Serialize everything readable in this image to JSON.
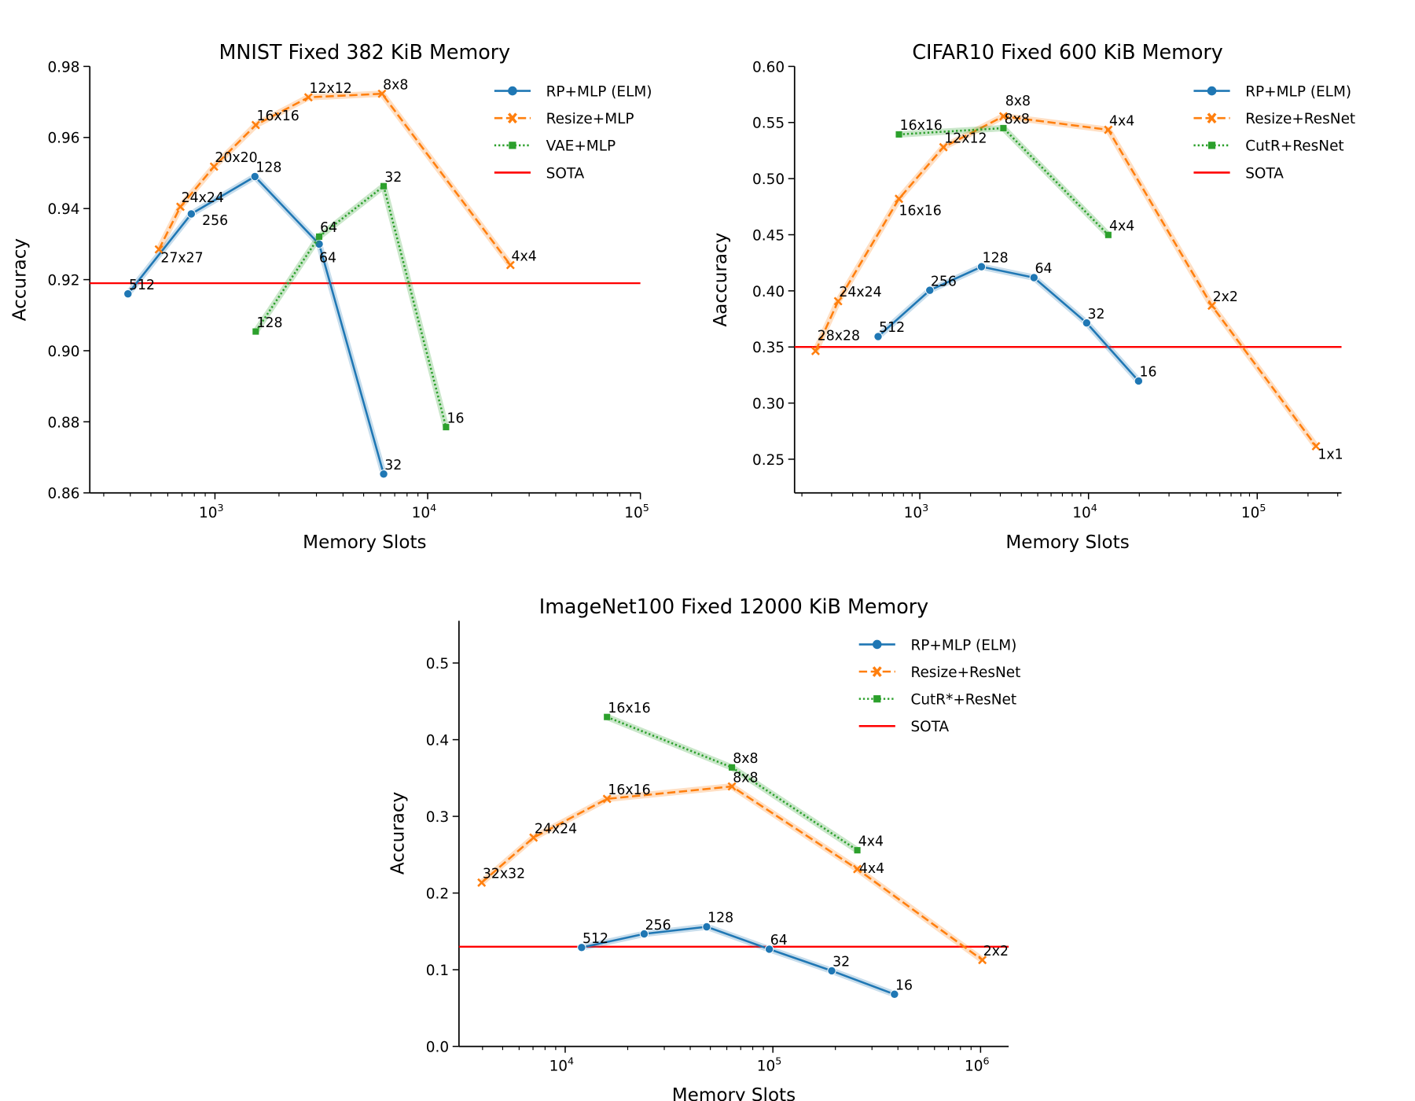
{
  "colors": {
    "rp": "#1f77b4",
    "resize": "#ff7f0e",
    "third": "#2ca02c",
    "sota": "#ff0000"
  },
  "chart_data": [
    {
      "type": "line",
      "title": "MNIST Fixed 382 KiB Memory",
      "xlabel": "Memory Slots",
      "ylabel": "Accuracy",
      "xscale": "log",
      "xlim": [
        258,
        100000
      ],
      "ylim": [
        0.86,
        0.98
      ],
      "yticks": [
        "0.86",
        "0.88",
        "0.90",
        "0.92",
        "0.94",
        "0.96",
        "0.98"
      ],
      "xticks": [
        {
          "base": "10",
          "exp": "3"
        },
        {
          "base": "10",
          "exp": "4"
        },
        {
          "base": "10",
          "exp": "5"
        }
      ],
      "legend_position": "top-right",
      "sota": 0.919,
      "series": [
        {
          "name": "RP+MLP (ELM)",
          "style": "solid-circle",
          "color": "#1f77b4",
          "points": [
            {
              "x": 390,
              "y": 0.916,
              "label": "512"
            },
            {
              "x": 774,
              "y": 0.9385,
              "label": "256"
            },
            {
              "x": 1541,
              "y": 0.949,
              "label": "128"
            },
            {
              "x": 3090,
              "y": 0.93,
              "label": "64"
            },
            {
              "x": 6210,
              "y": 0.8653,
              "label": "32"
            }
          ]
        },
        {
          "name": "Resize+MLP",
          "style": "dashed-x",
          "color": "#ff7f0e",
          "points": [
            {
              "x": 545,
              "y": 0.9285,
              "label": "27x27"
            },
            {
              "x": 688,
              "y": 0.9405,
              "label": "24x24"
            },
            {
              "x": 990,
              "y": 0.9518,
              "label": "20x20"
            },
            {
              "x": 1555,
              "y": 0.9635,
              "label": "16x16"
            },
            {
              "x": 2750,
              "y": 0.9713,
              "label": "12x12"
            },
            {
              "x": 6100,
              "y": 0.9723,
              "label": "8x8"
            },
            {
              "x": 24500,
              "y": 0.9241,
              "label": "4x4"
            }
          ]
        },
        {
          "name": "VAE+MLP",
          "style": "dotted-square",
          "color": "#2ca02c",
          "points": [
            {
              "x": 1555,
              "y": 0.9054,
              "label": "128"
            },
            {
              "x": 3090,
              "y": 0.9321,
              "label": "64"
            },
            {
              "x": 6210,
              "y": 0.9463,
              "label": "32"
            },
            {
              "x": 12200,
              "y": 0.8785,
              "label": "16"
            }
          ]
        },
        {
          "name": "SOTA",
          "style": "sota",
          "color": "#ff0000",
          "points": []
        }
      ]
    },
    {
      "type": "line",
      "title": "CIFAR10 Fixed 600 KiB Memory",
      "xlabel": "Memory Slots",
      "ylabel": "Aaccuracy",
      "xscale": "log",
      "xlim": [
        181,
        316000
      ],
      "ylim": [
        0.22,
        0.6
      ],
      "yticks": [
        "0.25",
        "0.30",
        "0.35",
        "0.40",
        "0.45",
        "0.50",
        "0.55",
        "0.60"
      ],
      "xticks": [
        {
          "base": "10",
          "exp": "3"
        },
        {
          "base": "10",
          "exp": "4"
        },
        {
          "base": "10",
          "exp": "5"
        }
      ],
      "legend_position": "top-right",
      "sota": 0.35,
      "series": [
        {
          "name": "RP+MLP (ELM)",
          "style": "solid-circle",
          "color": "#1f77b4",
          "points": [
            {
              "x": 566,
              "y": 0.3593,
              "label": "512"
            },
            {
              "x": 1146,
              "y": 0.4005,
              "label": "256"
            },
            {
              "x": 2320,
              "y": 0.4215,
              "label": "128"
            },
            {
              "x": 4750,
              "y": 0.4118,
              "label": "64"
            },
            {
              "x": 9750,
              "y": 0.3714,
              "label": "32"
            },
            {
              "x": 19800,
              "y": 0.3197,
              "label": "16"
            }
          ]
        },
        {
          "name": "Resize+ResNet",
          "style": "dashed-x",
          "color": "#ff7f0e",
          "points": [
            {
              "x": 241,
              "y": 0.3464,
              "label": "28x28"
            },
            {
              "x": 328,
              "y": 0.3908,
              "label": "24x24"
            },
            {
              "x": 752,
              "y": 0.482,
              "label": "16x16"
            },
            {
              "x": 1380,
              "y": 0.528,
              "label": "12x12"
            },
            {
              "x": 3130,
              "y": 0.5555,
              "label": "8x8"
            },
            {
              "x": 13100,
              "y": 0.5435,
              "label": "4x4"
            },
            {
              "x": 53800,
              "y": 0.3868,
              "label": "2x2"
            },
            {
              "x": 223000,
              "y": 0.2616,
              "label": "1x1"
            }
          ]
        },
        {
          "name": "CutR+ResNet",
          "style": "dotted-square",
          "color": "#2ca02c",
          "points": [
            {
              "x": 752,
              "y": 0.5394,
              "label": "16x16"
            },
            {
              "x": 3130,
              "y": 0.545,
              "label": "8x8"
            },
            {
              "x": 13100,
              "y": 0.4498,
              "label": "4x4"
            }
          ]
        },
        {
          "name": "SOTA",
          "style": "sota",
          "color": "#ff0000",
          "points": []
        }
      ]
    },
    {
      "type": "line",
      "title": "ImageNet100 Fixed 12000 KiB Memory",
      "xlabel": "Memory Slots",
      "ylabel": "Accuracy",
      "xscale": "log",
      "xlim": [
        3080,
        1365000
      ],
      "ylim": [
        0.0,
        0.555
      ],
      "yticks": [
        "0.0",
        "0.1",
        "0.2",
        "0.3",
        "0.4",
        "0.5"
      ],
      "xticks": [
        {
          "base": "10",
          "exp": "4"
        },
        {
          "base": "10",
          "exp": "5"
        },
        {
          "base": "10",
          "exp": "6"
        }
      ],
      "legend_position": "top-right",
      "sota": 0.13,
      "series": [
        {
          "name": "RP+MLP (ELM)",
          "style": "solid-circle",
          "color": "#1f77b4",
          "points": [
            {
              "x": 12000,
              "y": 0.129,
              "label": "512"
            },
            {
              "x": 24000,
              "y": 0.1467,
              "label": "256"
            },
            {
              "x": 48000,
              "y": 0.156,
              "label": "128"
            },
            {
              "x": 96100,
              "y": 0.1268,
              "label": "64"
            },
            {
              "x": 192000,
              "y": 0.0986,
              "label": "32"
            },
            {
              "x": 385000,
              "y": 0.068,
              "label": "16"
            }
          ]
        },
        {
          "name": "Resize+ResNet",
          "style": "dashed-x",
          "color": "#ff7f0e",
          "points": [
            {
              "x": 3960,
              "y": 0.2136,
              "label": "32x32"
            },
            {
              "x": 7040,
              "y": 0.2723,
              "label": "24x24"
            },
            {
              "x": 15900,
              "y": 0.3228,
              "label": "16x16"
            },
            {
              "x": 63500,
              "y": 0.339,
              "label": "8x8"
            },
            {
              "x": 255000,
              "y": 0.2312,
              "label": "4x4"
            },
            {
              "x": 1020000,
              "y": 0.1127,
              "label": "2x2"
            }
          ]
        },
        {
          "name": "CutR*+ResNet",
          "style": "dotted-square",
          "color": "#2ca02c",
          "points": [
            {
              "x": 15900,
              "y": 0.4296,
              "label": "16x16"
            },
            {
              "x": 63500,
              "y": 0.3638,
              "label": "8x8"
            },
            {
              "x": 255000,
              "y": 0.2558,
              "label": "4x4"
            }
          ]
        },
        {
          "name": "SOTA",
          "style": "sota",
          "color": "#ff0000",
          "points": []
        }
      ]
    }
  ]
}
